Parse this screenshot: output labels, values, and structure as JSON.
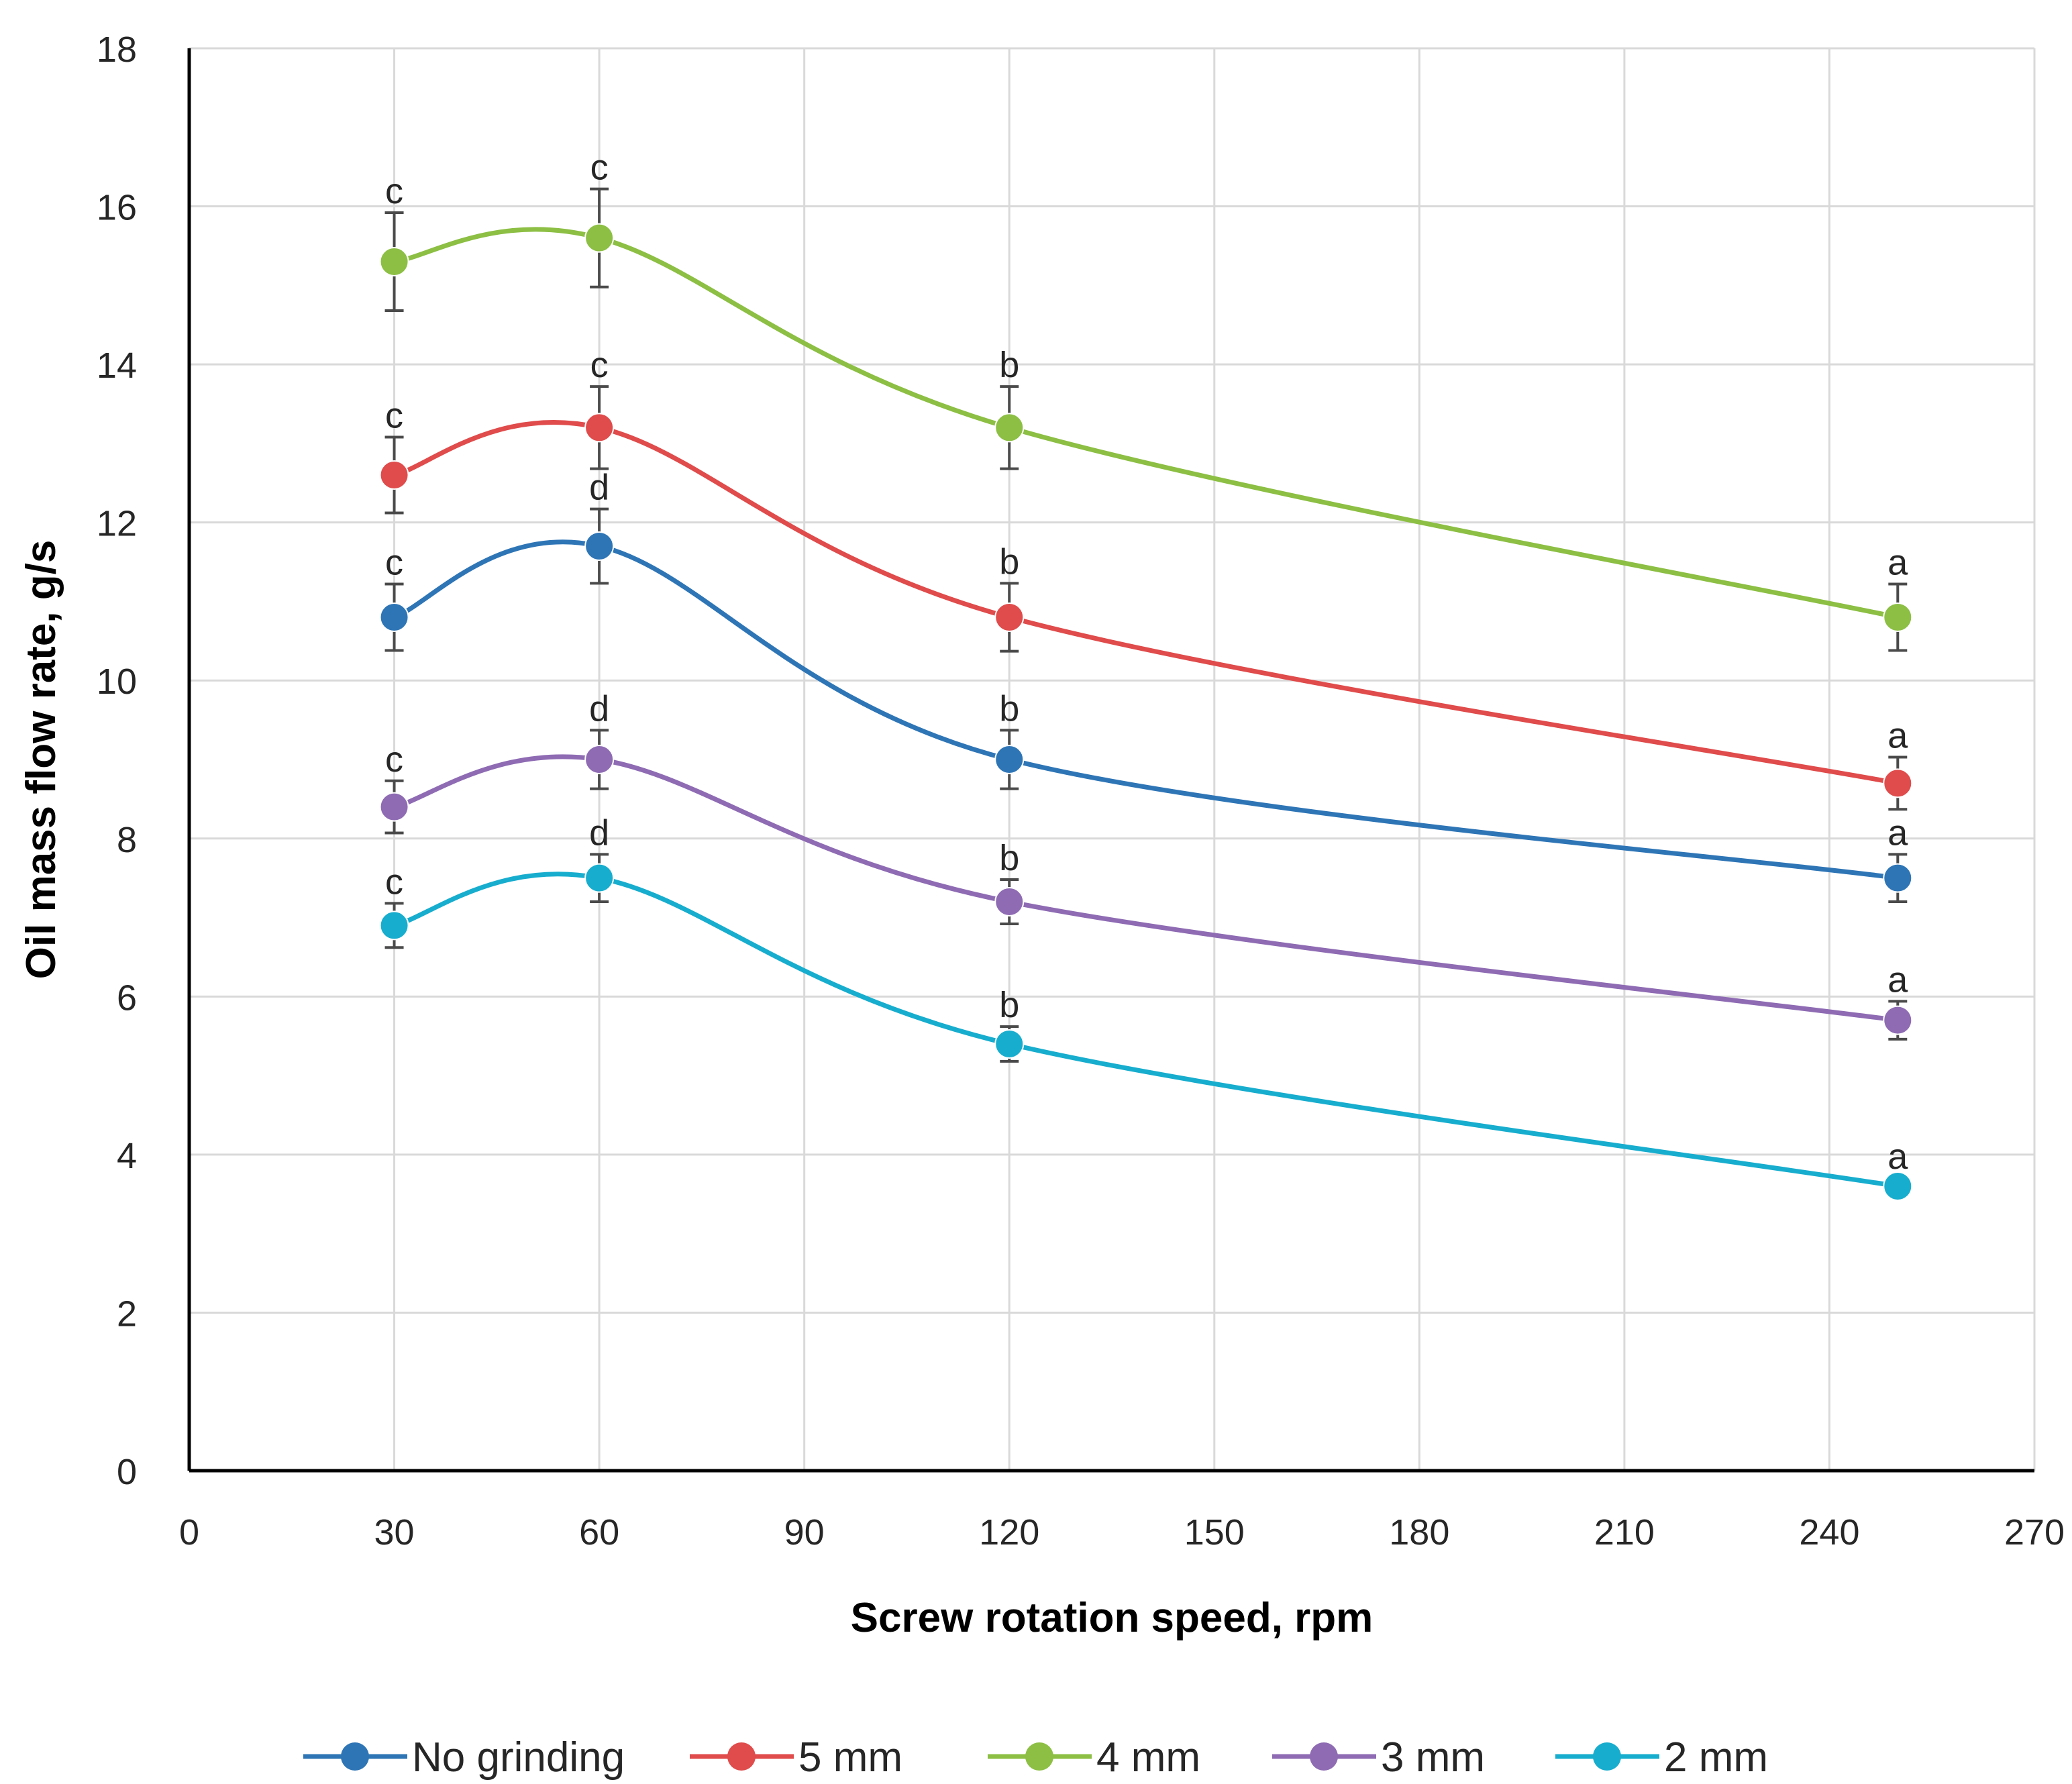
{
  "chart_data": {
    "type": "line",
    "title": "",
    "xlabel": "Screw rotation speed, rpm",
    "ylabel": "Oil mass flow rate, g/s",
    "xlim": [
      0,
      270
    ],
    "ylim": [
      0,
      18
    ],
    "xticks": [
      0,
      30,
      60,
      90,
      120,
      150,
      180,
      210,
      240,
      270
    ],
    "yticks": [
      0,
      2,
      4,
      6,
      8,
      10,
      12,
      14,
      16,
      18
    ],
    "grid": true,
    "legend_position": "bottom",
    "x": [
      30,
      60,
      120,
      250
    ],
    "series": [
      {
        "name": "No grinding",
        "color": "#2E75B6",
        "values": [
          10.8,
          11.7,
          9.0,
          7.5
        ],
        "errors": [
          0.42,
          0.47,
          0.37,
          0.3
        ],
        "letters": [
          "c",
          "d",
          "b",
          "a"
        ]
      },
      {
        "name": "5 mm",
        "color": "#E04B4B",
        "values": [
          12.6,
          13.2,
          10.8,
          8.7
        ],
        "errors": [
          0.48,
          0.52,
          0.43,
          0.33
        ],
        "letters": [
          "c",
          "c",
          "b",
          "a"
        ]
      },
      {
        "name": "4 mm",
        "color": "#8CBF44",
        "values": [
          15.3,
          15.6,
          13.2,
          10.8
        ],
        "errors": [
          0.62,
          0.62,
          0.52,
          0.42
        ],
        "letters": [
          "c",
          "c",
          "b",
          "a"
        ]
      },
      {
        "name": "3 mm",
        "color": "#8E6BB3",
        "values": [
          8.4,
          9.0,
          7.2,
          5.7
        ],
        "errors": [
          0.33,
          0.37,
          0.28,
          0.24
        ],
        "letters": [
          "c",
          "d",
          "b",
          "a"
        ]
      },
      {
        "name": "2 mm",
        "color": "#17ADCE",
        "values": [
          6.9,
          7.5,
          5.4,
          3.6
        ],
        "errors": [
          0.28,
          0.3,
          0.22,
          0.1
        ],
        "letters": [
          "c",
          "d",
          "b",
          "a"
        ]
      }
    ]
  }
}
